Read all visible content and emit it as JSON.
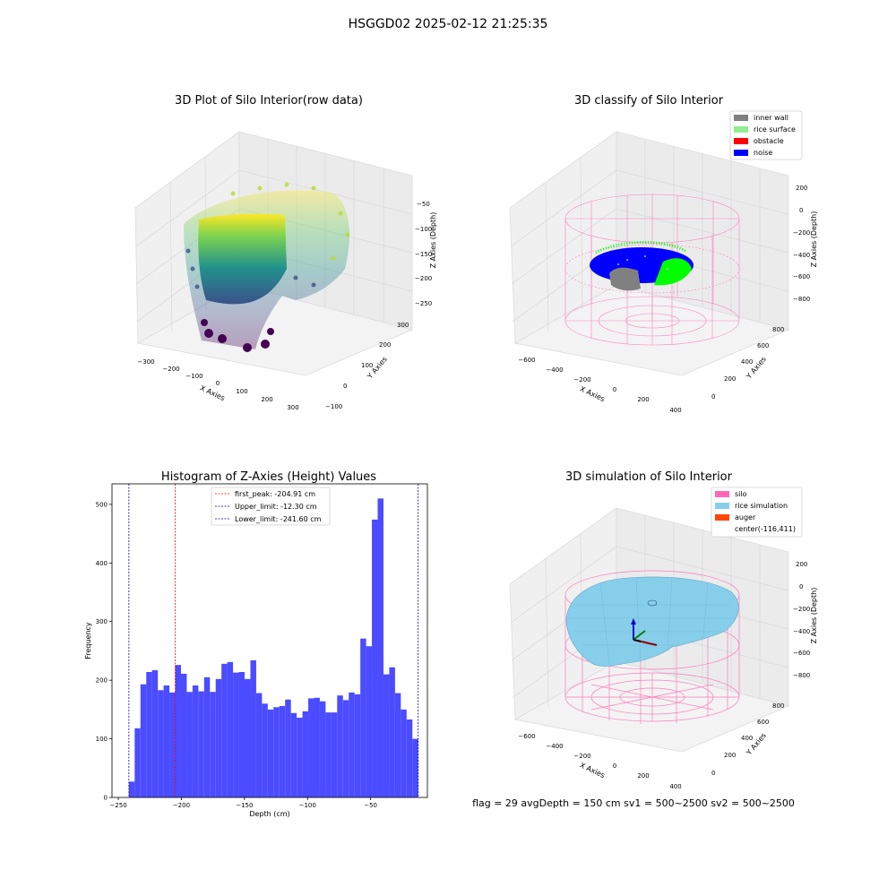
{
  "suptitle": "HSGGD02 2025-02-12 21:25:35",
  "status_line": "flag = 29  avgDepth = 150 cm  sv1 = 500~2500  sv2 = 500~2500",
  "colors": {
    "grey": "#808080",
    "green": "#90ee90",
    "red": "#ff0000",
    "blue": "#0000ff",
    "pink": "#ff69b4",
    "sky": "#87ceeb",
    "orange": "#ff4500",
    "hist": "#4b4bff"
  },
  "chart_data": [
    {
      "type": "scatter",
      "subtype": "3d",
      "title": "3D Plot of Silo Interior(row data)",
      "xlabel": "X Axies",
      "ylabel": "Y Axies",
      "zlabel": "Z Axies (Depth)",
      "x_ticks": [
        "−300",
        "−200",
        "−100",
        "0",
        "100",
        "200",
        "300"
      ],
      "y_ticks": [
        "−100",
        "0",
        "100",
        "200",
        "300"
      ],
      "z_ticks": [
        "−50",
        "−100",
        "−150",
        "−200",
        "−250"
      ],
      "colormap": "viridis",
      "grid": true
    },
    {
      "type": "scatter",
      "subtype": "3d",
      "title": "3D classify of Silo Interior",
      "xlabel": "X Axies",
      "ylabel": "Y Axies",
      "zlabel": "Z Axies (Depth)",
      "x_ticks": [
        "−600",
        "−400",
        "−200",
        "0",
        "200",
        "400"
      ],
      "y_ticks": [
        "0",
        "200",
        "400",
        "600",
        "800"
      ],
      "z_ticks": [
        "200",
        "0",
        "−200",
        "−400",
        "−600",
        "−800"
      ],
      "legend": [
        {
          "label": "inner wall",
          "color": "#808080"
        },
        {
          "label": "rice surface",
          "color": "#90ee90"
        },
        {
          "label": "obstacle",
          "color": "#ff0000"
        },
        {
          "label": "noise",
          "color": "#0000ff"
        }
      ],
      "legend_position": "top-right",
      "grid": true
    },
    {
      "type": "bar",
      "subtype": "histogram",
      "title": "Histogram of Z-Axies (Height) Values",
      "xlabel": "Depth (cm)",
      "ylabel": "Frequency",
      "xlim": [
        -255,
        -5
      ],
      "ylim": [
        0,
        535
      ],
      "x_ticks": [
        -250,
        -200,
        -150,
        -100,
        -50
      ],
      "x_tick_labels": [
        "−250",
        "−200",
        "−150",
        "−100",
        "−50"
      ],
      "y_ticks": [
        0,
        100,
        200,
        300,
        400,
        500
      ],
      "bin_start": -241.6,
      "bin_width": 4.586,
      "values": [
        27,
        118,
        193,
        214,
        217,
        183,
        191,
        179,
        226,
        211,
        180,
        191,
        181,
        205,
        180,
        202,
        228,
        231,
        213,
        214,
        202,
        234,
        178,
        160,
        150,
        154,
        156,
        167,
        144,
        136,
        147,
        169,
        170,
        164,
        145,
        145,
        174,
        166,
        179,
        176,
        271,
        258,
        474,
        510,
        210,
        222,
        178,
        150,
        133,
        100
      ],
      "vlines": [
        {
          "label": "first_peak: -204.91 cm",
          "x": -204.91,
          "color": "#ff0000"
        },
        {
          "label": "Upper_limit: -12.30 cm",
          "x": -12.3,
          "color": "#00008b"
        },
        {
          "label": "Lower_limit: -241.60 cm",
          "x": -241.6,
          "color": "#00008b"
        }
      ],
      "legend_position": "top-center"
    },
    {
      "type": "scatter",
      "subtype": "3d-surface",
      "title": "3D simulation of Silo Interior",
      "xlabel": "X Axies",
      "ylabel": "Y Axies",
      "zlabel": "Z Axies (Depth)",
      "x_ticks": [
        "−600",
        "−400",
        "−200",
        "0",
        "200",
        "400"
      ],
      "y_ticks": [
        "0",
        "200",
        "400",
        "600",
        "800"
      ],
      "z_ticks": [
        "200",
        "0",
        "−200",
        "−400",
        "−600",
        "−800"
      ],
      "legend": [
        {
          "label": "silo",
          "color": "#ff69b4"
        },
        {
          "label": "rice simulation",
          "color": "#87ceeb"
        },
        {
          "label": "auger",
          "color": "#ff4500"
        },
        {
          "label": "center(-116,411)",
          "color": ""
        }
      ],
      "legend_position": "top-right",
      "grid": true
    }
  ]
}
